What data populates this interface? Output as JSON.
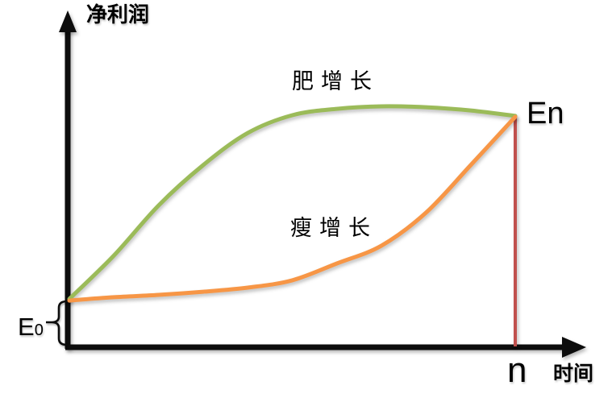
{
  "colors": {
    "fat_growth": "#9bbb59",
    "thin_growth": "#f79646",
    "marker_line": "#c0504d",
    "axis": "#0d0d0d"
  },
  "labels": {
    "y_axis": "净利润",
    "x_axis": "时间",
    "fat_curve": "肥增长",
    "thin_curve": "瘦增长",
    "start_value_main": "E",
    "start_value_sub": "0",
    "end_value": "En",
    "x_marker": "n"
  },
  "chart_data": {
    "type": "line",
    "title": "",
    "xlabel": "时间",
    "ylabel": "净利润",
    "grid": false,
    "x_axis_tick_labels": [
      "n"
    ],
    "y_axis_tick_labels": [
      "E0",
      "En"
    ],
    "x_normalized": [
      0,
      0.1,
      0.2,
      0.3,
      0.4,
      0.5,
      0.6,
      0.7,
      0.8,
      0.9,
      1.0
    ],
    "series": [
      {
        "name": "肥增长",
        "color": "#9bbb59",
        "values_normalized": [
          0.201,
          0.392,
          0.611,
          0.788,
          0.929,
          1.007,
          1.035,
          1.046,
          1.042,
          1.028,
          1.004
        ]
      },
      {
        "name": "瘦增长",
        "color": "#f79646",
        "values_normalized": [
          0.194,
          0.209,
          0.219,
          0.233,
          0.251,
          0.283,
          0.357,
          0.435,
          0.58,
          0.788,
          1.0
        ]
      }
    ],
    "annotations": [
      {
        "text": "E0",
        "target": "initial value on y-axis, marked with brace"
      },
      {
        "text": "En",
        "target": "final value where both curves meet"
      },
      {
        "text": "n",
        "target": "time marker on x-axis",
        "marker_line_color": "#c0504d"
      }
    ]
  }
}
